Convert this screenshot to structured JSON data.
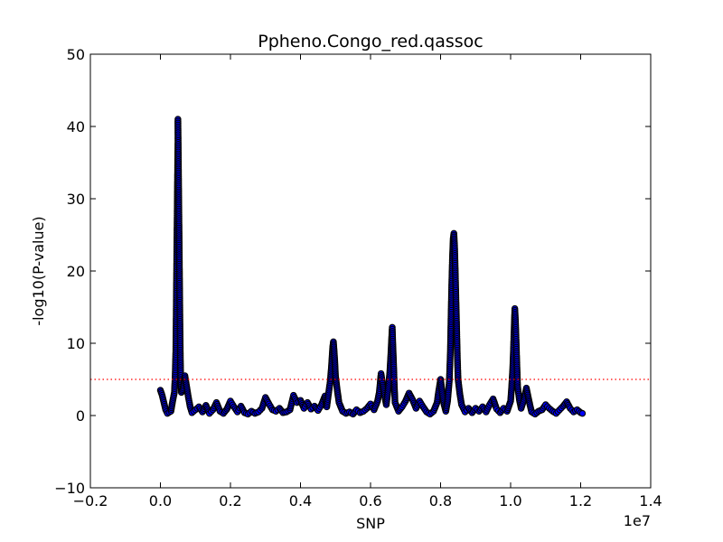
{
  "chart_data": {
    "type": "scatter",
    "title": "Ppheno.Congo_red.qassoc",
    "xlabel": "SNP",
    "ylabel": "-log10(P-value)",
    "x_offset_label": "1e7",
    "xlim": [
      -0.2,
      1.4
    ],
    "ylim": [
      -10,
      50
    ],
    "x_ticks": [
      -0.2,
      0.0,
      0.2,
      0.4,
      0.6,
      0.8,
      1.0,
      1.2,
      1.4
    ],
    "x_tick_labels": [
      "−0.2",
      "0.0",
      "0.2",
      "0.4",
      "0.6",
      "0.8",
      "1.0",
      "1.2",
      "1.4"
    ],
    "y_ticks": [
      -10,
      0,
      10,
      20,
      30,
      40,
      50
    ],
    "y_tick_labels": [
      "−10",
      "0",
      "10",
      "20",
      "30",
      "40",
      "50"
    ],
    "threshold": {
      "y": 5,
      "style": "dotted",
      "color": "#ff0000"
    },
    "grid": false,
    "marker": {
      "face_color": "#0000ff",
      "edge_color": "#000000"
    },
    "points": [
      [
        0.0,
        3.5
      ],
      [
        0.005,
        2.8
      ],
      [
        0.01,
        1.8
      ],
      [
        0.015,
        0.8
      ],
      [
        0.02,
        0.3
      ],
      [
        0.03,
        0.6
      ],
      [
        0.035,
        2.0
      ],
      [
        0.04,
        3.2
      ],
      [
        0.042,
        5.5
      ],
      [
        0.044,
        9.0
      ],
      [
        0.045,
        14.0
      ],
      [
        0.046,
        19.0
      ],
      [
        0.047,
        24.0
      ],
      [
        0.048,
        29.0
      ],
      [
        0.049,
        34.0
      ],
      [
        0.05,
        38.0
      ],
      [
        0.05,
        41.0
      ],
      [
        0.051,
        37.0
      ],
      [
        0.052,
        32.0
      ],
      [
        0.053,
        27.0
      ],
      [
        0.054,
        22.0
      ],
      [
        0.055,
        17.0
      ],
      [
        0.056,
        12.0
      ],
      [
        0.057,
        8.0
      ],
      [
        0.058,
        5.0
      ],
      [
        0.06,
        3.2
      ],
      [
        0.065,
        3.8
      ],
      [
        0.07,
        5.5
      ],
      [
        0.075,
        4.0
      ],
      [
        0.08,
        2.5
      ],
      [
        0.085,
        1.2
      ],
      [
        0.09,
        0.4
      ],
      [
        0.1,
        0.8
      ],
      [
        0.11,
        1.2
      ],
      [
        0.12,
        0.5
      ],
      [
        0.13,
        1.4
      ],
      [
        0.14,
        0.3
      ],
      [
        0.15,
        0.8
      ],
      [
        0.16,
        1.8
      ],
      [
        0.17,
        0.6
      ],
      [
        0.18,
        0.3
      ],
      [
        0.19,
        0.9
      ],
      [
        0.2,
        2.0
      ],
      [
        0.21,
        1.2
      ],
      [
        0.22,
        0.5
      ],
      [
        0.23,
        1.3
      ],
      [
        0.24,
        0.4
      ],
      [
        0.25,
        0.2
      ],
      [
        0.26,
        0.6
      ],
      [
        0.27,
        0.3
      ],
      [
        0.28,
        0.5
      ],
      [
        0.29,
        1.0
      ],
      [
        0.3,
        2.5
      ],
      [
        0.31,
        1.6
      ],
      [
        0.32,
        0.8
      ],
      [
        0.33,
        0.6
      ],
      [
        0.34,
        1.0
      ],
      [
        0.35,
        0.4
      ],
      [
        0.36,
        0.5
      ],
      [
        0.37,
        0.8
      ],
      [
        0.38,
        2.8
      ],
      [
        0.39,
        1.8
      ],
      [
        0.4,
        2.1
      ],
      [
        0.41,
        1.0
      ],
      [
        0.42,
        1.8
      ],
      [
        0.43,
        0.9
      ],
      [
        0.44,
        1.3
      ],
      [
        0.45,
        0.7
      ],
      [
        0.46,
        1.5
      ],
      [
        0.47,
        2.7
      ],
      [
        0.475,
        1.2
      ],
      [
        0.48,
        3.0
      ],
      [
        0.485,
        4.8
      ],
      [
        0.488,
        6.5
      ],
      [
        0.49,
        8.0
      ],
      [
        0.492,
        9.5
      ],
      [
        0.494,
        10.2
      ],
      [
        0.496,
        9.0
      ],
      [
        0.498,
        7.5
      ],
      [
        0.5,
        5.5
      ],
      [
        0.505,
        3.5
      ],
      [
        0.51,
        1.8
      ],
      [
        0.52,
        0.6
      ],
      [
        0.53,
        0.3
      ],
      [
        0.54,
        0.5
      ],
      [
        0.55,
        0.2
      ],
      [
        0.56,
        0.8
      ],
      [
        0.57,
        0.4
      ],
      [
        0.58,
        0.6
      ],
      [
        0.59,
        1.0
      ],
      [
        0.6,
        1.6
      ],
      [
        0.61,
        0.8
      ],
      [
        0.62,
        2.0
      ],
      [
        0.625,
        3.2
      ],
      [
        0.63,
        5.8
      ],
      [
        0.635,
        4.2
      ],
      [
        0.64,
        2.8
      ],
      [
        0.645,
        1.5
      ],
      [
        0.65,
        3.5
      ],
      [
        0.655,
        6.0
      ],
      [
        0.658,
        8.5
      ],
      [
        0.66,
        10.5
      ],
      [
        0.662,
        12.2
      ],
      [
        0.664,
        9.5
      ],
      [
        0.666,
        7.0
      ],
      [
        0.668,
        4.0
      ],
      [
        0.67,
        1.8
      ],
      [
        0.68,
        0.6
      ],
      [
        0.69,
        1.2
      ],
      [
        0.7,
        2.0
      ],
      [
        0.71,
        3.1
      ],
      [
        0.72,
        2.2
      ],
      [
        0.73,
        1.0
      ],
      [
        0.74,
        2.0
      ],
      [
        0.75,
        1.2
      ],
      [
        0.76,
        0.5
      ],
      [
        0.77,
        0.2
      ],
      [
        0.78,
        0.6
      ],
      [
        0.79,
        1.8
      ],
      [
        0.795,
        3.5
      ],
      [
        0.8,
        5.0
      ],
      [
        0.805,
        3.0
      ],
      [
        0.81,
        1.5
      ],
      [
        0.815,
        0.6
      ],
      [
        0.82,
        2.0
      ],
      [
        0.825,
        4.8
      ],
      [
        0.828,
        9.0
      ],
      [
        0.83,
        14.0
      ],
      [
        0.832,
        18.5
      ],
      [
        0.834,
        22.0
      ],
      [
        0.836,
        24.5
      ],
      [
        0.838,
        25.2
      ],
      [
        0.84,
        23.5
      ],
      [
        0.842,
        20.0
      ],
      [
        0.844,
        16.0
      ],
      [
        0.846,
        12.0
      ],
      [
        0.848,
        8.0
      ],
      [
        0.85,
        5.0
      ],
      [
        0.855,
        3.0
      ],
      [
        0.86,
        1.5
      ],
      [
        0.87,
        0.5
      ],
      [
        0.88,
        1.0
      ],
      [
        0.89,
        0.4
      ],
      [
        0.9,
        1.0
      ],
      [
        0.91,
        0.6
      ],
      [
        0.92,
        1.2
      ],
      [
        0.93,
        0.5
      ],
      [
        0.94,
        1.5
      ],
      [
        0.95,
        2.3
      ],
      [
        0.96,
        0.9
      ],
      [
        0.97,
        0.4
      ],
      [
        0.98,
        1.0
      ],
      [
        0.99,
        0.6
      ],
      [
        1.0,
        2.0
      ],
      [
        1.003,
        4.0
      ],
      [
        1.006,
        6.5
      ],
      [
        1.008,
        9.0
      ],
      [
        1.01,
        12.0
      ],
      [
        1.012,
        14.8
      ],
      [
        1.014,
        13.0
      ],
      [
        1.016,
        10.0
      ],
      [
        1.018,
        7.0
      ],
      [
        1.02,
        4.0
      ],
      [
        1.025,
        2.2
      ],
      [
        1.03,
        1.0
      ],
      [
        1.04,
        2.5
      ],
      [
        1.045,
        3.8
      ],
      [
        1.05,
        2.6
      ],
      [
        1.055,
        1.5
      ],
      [
        1.06,
        0.5
      ],
      [
        1.07,
        0.2
      ],
      [
        1.08,
        0.6
      ],
      [
        1.09,
        0.8
      ],
      [
        1.1,
        1.5
      ],
      [
        1.11,
        1.0
      ],
      [
        1.12,
        0.6
      ],
      [
        1.13,
        0.3
      ],
      [
        1.14,
        0.8
      ],
      [
        1.15,
        1.3
      ],
      [
        1.16,
        1.9
      ],
      [
        1.17,
        1.0
      ],
      [
        1.18,
        0.5
      ],
      [
        1.19,
        0.8
      ],
      [
        1.2,
        0.4
      ],
      [
        1.205,
        0.3
      ]
    ]
  }
}
